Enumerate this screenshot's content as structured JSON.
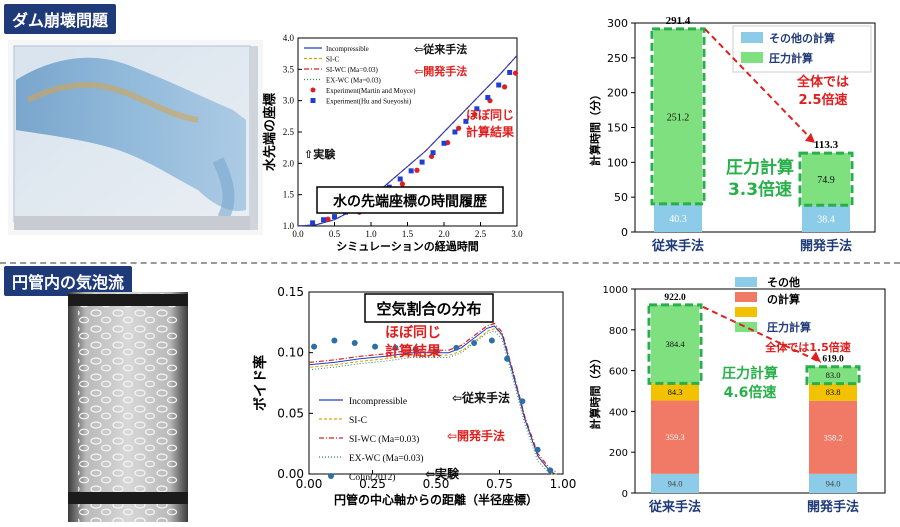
{
  "sections": {
    "top_title": "ダム崩壊問題",
    "bottom_title": "円管内の気泡流"
  },
  "colors": {
    "title_bg": "#1f3a78",
    "incompressible": "#1f3fbf",
    "sic": "#d9a400",
    "siwc": "#d62020",
    "exwc": "#2a8a5a",
    "exp_red": "#e02020",
    "exp_blue": "#1f3fd0",
    "other_bar": "#8ccce8",
    "pressure_bar": "#7ee07e",
    "orange_bar": "#f07a66",
    "yellow_bar": "#f2c200",
    "callout_red": "#e02020",
    "callout_green": "#27b04a"
  },
  "chart_data": [
    {
      "type": "line",
      "title": "水の先端座標の時間履歴",
      "xlabel": "シミュレーションの経過時間",
      "ylabel": "水先端の座標",
      "xlim": [
        0,
        3.0
      ],
      "ylim": [
        1.0,
        4.0
      ],
      "xticks": [
        "0.0",
        "0.5",
        "1.0",
        "1.5",
        "2.0",
        "2.5",
        "3.0"
      ],
      "yticks": [
        "1.0",
        "1.5",
        "2.0",
        "2.5",
        "3.0",
        "3.5",
        "4.0"
      ],
      "legend": [
        "Incompressible",
        "SI-C",
        "SI-WC (Ma=0.03)",
        "EX-WC (Ma=0.03)",
        "Experiment(Martin and Moyce)",
        "Experiment(Hu and Sueyoshi)"
      ],
      "curve_x": [
        0,
        0.25,
        0.5,
        0.75,
        1.0,
        1.25,
        1.5,
        1.75,
        2.0,
        2.25,
        2.5,
        2.75,
        3.0
      ],
      "curve_y": [
        1.0,
        1.02,
        1.1,
        1.25,
        1.45,
        1.7,
        1.95,
        2.2,
        2.5,
        2.8,
        3.1,
        3.4,
        3.72
      ],
      "exp_martin_x": [
        0.41,
        0.84,
        1.19,
        1.43,
        1.63,
        1.83,
        2.05,
        2.2,
        2.42,
        2.63,
        2.83,
        2.98
      ],
      "exp_martin_y": [
        1.11,
        1.22,
        1.44,
        1.67,
        1.89,
        2.11,
        2.33,
        2.56,
        2.78,
        3.0,
        3.22,
        3.44
      ],
      "exp_hu_x": [
        0.2,
        0.35,
        0.5,
        0.65,
        0.8,
        0.95,
        1.1,
        1.25,
        1.4,
        1.55,
        1.7,
        1.85,
        2.0,
        2.15,
        2.3,
        2.45,
        2.6,
        2.75,
        2.9
      ],
      "exp_hu_y": [
        1.05,
        1.1,
        1.15,
        1.22,
        1.3,
        1.4,
        1.5,
        1.62,
        1.75,
        1.88,
        2.02,
        2.17,
        2.32,
        2.5,
        2.67,
        2.87,
        3.05,
        3.25,
        3.45
      ],
      "annotations": [
        "⇦従来手法",
        "⇦開発手法",
        "ほぼ同じ\n計算結果",
        "⇧実験"
      ]
    },
    {
      "type": "bar",
      "ylabel": "計算時間（分）",
      "ylim": [
        0,
        300
      ],
      "yticks": [
        "0",
        "50",
        "100",
        "150",
        "200",
        "250",
        "300"
      ],
      "categories": [
        "従来手法",
        "開発手法"
      ],
      "series": [
        {
          "name": "その他の計算",
          "values": [
            40.3,
            38.4
          ]
        },
        {
          "name": "圧力計算",
          "values": [
            251.2,
            74.9
          ]
        }
      ],
      "totals": [
        "291.4",
        "113.3"
      ],
      "labels": {
        "other": [
          "40.3",
          "38.4"
        ],
        "pressure": [
          "251.2",
          "74.9"
        ]
      },
      "callout_overall": "全体では\n2.5倍速",
      "callout_pressure": "圧力計算\n3.3倍速"
    },
    {
      "type": "line",
      "title": "空気割合の分布",
      "xlabel": "円管の中心軸からの距離（半径座標）",
      "ylabel": "ボイド率",
      "xlim": [
        0,
        1.0
      ],
      "ylim": [
        0,
        0.15
      ],
      "xticks": [
        "0.00",
        "0.25",
        "0.50",
        "0.75",
        "1.00"
      ],
      "yticks": [
        "0.00",
        "0.05",
        "0.10",
        "0.15"
      ],
      "legend": [
        "Incompressible",
        "SI-C",
        "SI-WC (Ma=0.03)",
        "EX-WC (Ma=0.03)",
        "Colin(2012)"
      ],
      "curve_x": [
        0,
        0.1,
        0.2,
        0.3,
        0.4,
        0.5,
        0.55,
        0.6,
        0.65,
        0.7,
        0.73,
        0.76,
        0.8,
        0.85,
        0.9,
        0.95,
        0.97
      ],
      "curve_y": [
        0.09,
        0.092,
        0.095,
        0.097,
        0.1,
        0.1,
        0.1,
        0.104,
        0.112,
        0.12,
        0.122,
        0.115,
        0.085,
        0.045,
        0.015,
        0.002,
        0
      ],
      "exp_x": [
        0.02,
        0.1,
        0.18,
        0.26,
        0.34,
        0.42,
        0.5,
        0.58,
        0.65,
        0.72,
        0.78,
        0.84,
        0.9,
        0.95
      ],
      "exp_y": [
        0.105,
        0.11,
        0.108,
        0.105,
        0.104,
        0.103,
        0.101,
        0.104,
        0.108,
        0.11,
        0.095,
        0.06,
        0.02,
        0.003
      ],
      "annotations": [
        "⇦従来手法",
        "⇦開発手法",
        "ほぼ同じ\n計算結果",
        "⇦実験"
      ]
    },
    {
      "type": "bar",
      "ylabel": "計算時間（分）",
      "ylim": [
        0,
        1000
      ],
      "yticks": [
        "0",
        "200",
        "400",
        "600",
        "800",
        "1000"
      ],
      "categories": [
        "従来手法",
        "開発手法"
      ],
      "series": [
        {
          "name": "その他",
          "values": [
            94.0,
            94.0
          ]
        },
        {
          "name": "の計算",
          "values": [
            359.3,
            358.2
          ]
        },
        {
          "name": "",
          "values": [
            84.3,
            83.8
          ]
        },
        {
          "name": "圧力計算",
          "values": [
            384.4,
            83.0
          ]
        }
      ],
      "legend": [
        "その他",
        "の計算",
        "圧力計算"
      ],
      "totals": [
        "922.0",
        "619.0"
      ],
      "labels": {
        "s1": [
          "94.0",
          "94.0"
        ],
        "s2": [
          "359.3",
          "358.2"
        ],
        "s3": [
          "84.3",
          "83.8"
        ],
        "s4": [
          "384.4",
          "83.0"
        ]
      },
      "callout_overall": "全体では1.5倍速",
      "callout_pressure": "圧力計算\n4.6倍速"
    }
  ]
}
